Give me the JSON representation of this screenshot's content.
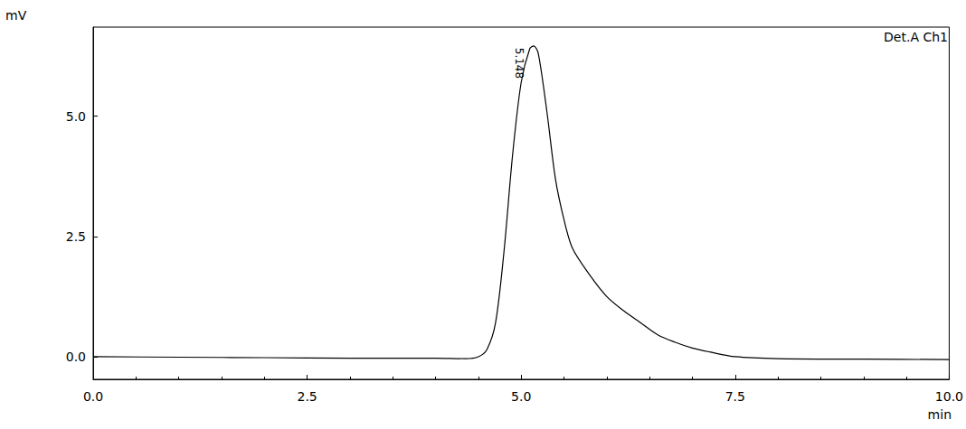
{
  "chart_data": {
    "type": "line",
    "title": "Det.A Ch1",
    "x_label": "min",
    "y_label": "mV",
    "color": "#000000",
    "grid": false,
    "x": [
      0,
      1,
      2,
      3,
      4,
      4.35,
      4.5,
      4.6,
      4.7,
      4.8,
      4.9,
      5.0,
      5.1,
      5.148,
      5.2,
      5.3,
      5.4,
      5.5,
      5.6,
      5.8,
      6.0,
      6.2,
      6.4,
      6.6,
      6.8,
      7.0,
      7.2,
      7.5,
      8,
      9,
      10
    ],
    "values": [
      0.0,
      -0.01,
      -0.02,
      -0.03,
      -0.03,
      -0.04,
      0.0,
      0.15,
      0.7,
      2.2,
      4.2,
      5.7,
      6.4,
      6.46,
      6.3,
      5.1,
      3.7,
      2.85,
      2.25,
      1.7,
      1.25,
      0.95,
      0.7,
      0.45,
      0.3,
      0.18,
      0.1,
      0.0,
      -0.04,
      -0.05,
      -0.06
    ],
    "xlim": [
      0,
      10
    ],
    "xticks": [
      {
        "value": 0,
        "label": "0.0"
      },
      {
        "value": 2.5,
        "label": "2.5"
      },
      {
        "value": 5,
        "label": "5.0"
      },
      {
        "value": 7.5,
        "label": "7.5"
      },
      {
        "value": 10,
        "label": "10.0"
      }
    ],
    "ylim": [
      -0.47,
      6.85
    ],
    "yticks": [
      {
        "value": 0,
        "label": "0.0"
      },
      {
        "value": 2.5,
        "label": "2.5"
      },
      {
        "value": 5,
        "label": "5.0"
      }
    ],
    "annotations": [
      {
        "text": "5.148",
        "x": 5.148,
        "y": 6.46
      }
    ]
  }
}
